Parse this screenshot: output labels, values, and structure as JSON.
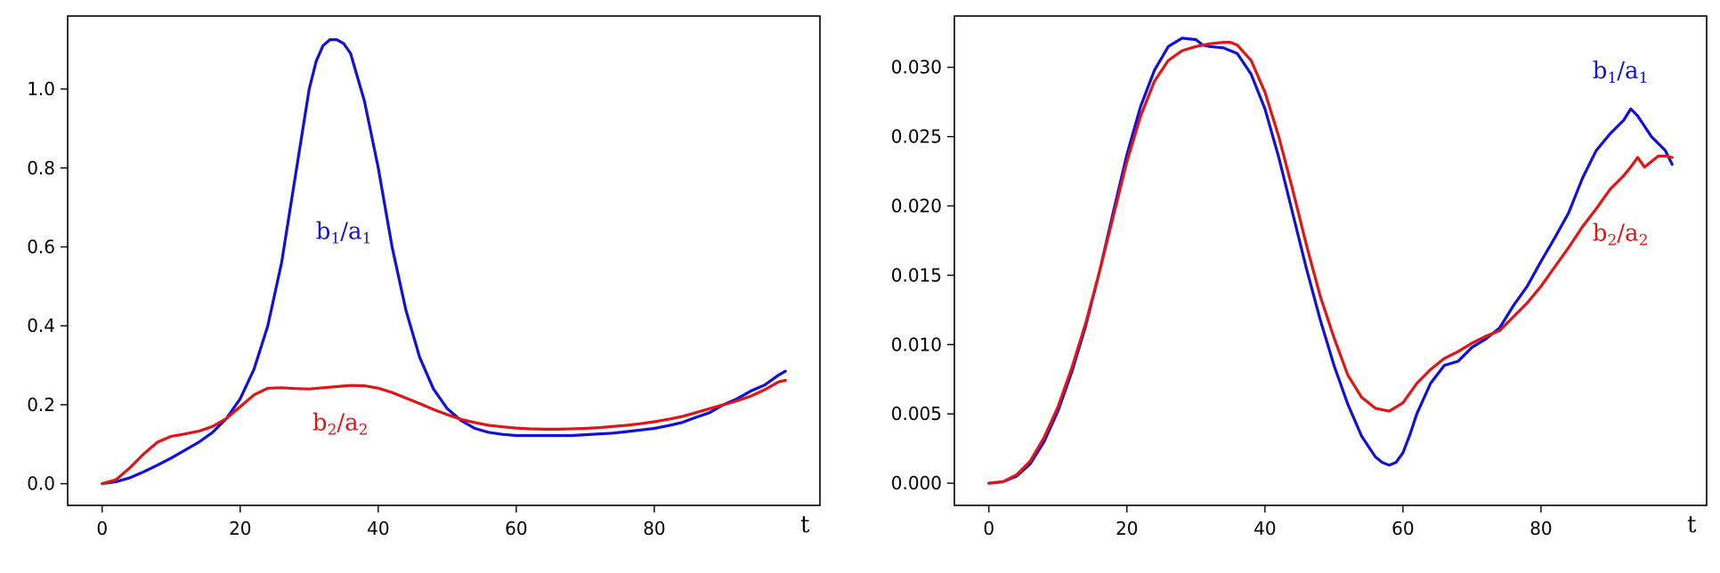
{
  "colors": {
    "b1_over_a1": "#1010dd",
    "b2_over_a2": "#e01515",
    "axes": "#000000"
  },
  "chart_data": [
    {
      "type": "line",
      "xlabel": "t",
      "xlim": [
        -5,
        104
      ],
      "ylim": [
        -0.055,
        1.185
      ],
      "xticks": [
        0,
        20,
        40,
        60,
        80
      ],
      "yticks": [
        0.0,
        0.2,
        0.4,
        0.6,
        0.8,
        1.0
      ],
      "ytick_labels": [
        "0.0",
        "0.2",
        "0.4",
        "0.6",
        "0.8",
        "1.0"
      ],
      "grid": false,
      "series": [
        {
          "name_main": "b",
          "name_sub": "1",
          "name_sep": "/",
          "name_main2": "a",
          "name_sub2": "1",
          "color": "#1010dd",
          "label_anchor": [
            35,
            0.62
          ],
          "x": [
            0,
            2,
            4,
            6,
            8,
            10,
            12,
            14,
            16,
            18,
            20,
            22,
            24,
            26,
            28,
            30,
            31,
            32,
            33,
            34,
            35,
            36,
            38,
            40,
            42,
            44,
            46,
            48,
            50,
            52,
            54,
            56,
            58,
            60,
            62,
            64,
            66,
            68,
            70,
            72,
            74,
            76,
            78,
            80,
            82,
            84,
            86,
            88,
            90,
            92,
            94,
            96,
            98,
            99
          ],
          "y": [
            0.0,
            0.005,
            0.015,
            0.03,
            0.047,
            0.065,
            0.085,
            0.105,
            0.13,
            0.165,
            0.215,
            0.29,
            0.4,
            0.56,
            0.78,
            1.0,
            1.07,
            1.11,
            1.125,
            1.125,
            1.115,
            1.09,
            0.97,
            0.8,
            0.6,
            0.44,
            0.32,
            0.24,
            0.19,
            0.16,
            0.14,
            0.13,
            0.125,
            0.122,
            0.122,
            0.122,
            0.122,
            0.122,
            0.124,
            0.126,
            0.128,
            0.132,
            0.136,
            0.14,
            0.147,
            0.155,
            0.168,
            0.18,
            0.2,
            0.215,
            0.235,
            0.25,
            0.275,
            0.285
          ]
        },
        {
          "name_main": "b",
          "name_sub": "2",
          "name_sep": "/",
          "name_main2": "a",
          "name_sub2": "2",
          "color": "#e01515",
          "label_anchor": [
            34.5,
            0.135
          ],
          "x": [
            0,
            2,
            4,
            6,
            8,
            10,
            12,
            14,
            16,
            18,
            20,
            22,
            24,
            26,
            28,
            30,
            32,
            34,
            36,
            38,
            40,
            42,
            44,
            46,
            48,
            50,
            52,
            54,
            56,
            58,
            60,
            62,
            64,
            66,
            68,
            70,
            72,
            74,
            76,
            78,
            80,
            82,
            84,
            86,
            88,
            90,
            92,
            94,
            96,
            98,
            99
          ],
          "y": [
            0.0,
            0.01,
            0.04,
            0.075,
            0.105,
            0.12,
            0.126,
            0.133,
            0.145,
            0.165,
            0.195,
            0.225,
            0.242,
            0.243,
            0.241,
            0.24,
            0.243,
            0.246,
            0.249,
            0.248,
            0.242,
            0.231,
            0.217,
            0.203,
            0.188,
            0.175,
            0.163,
            0.155,
            0.148,
            0.144,
            0.141,
            0.139,
            0.138,
            0.138,
            0.139,
            0.14,
            0.142,
            0.145,
            0.148,
            0.152,
            0.157,
            0.163,
            0.17,
            0.18,
            0.19,
            0.2,
            0.21,
            0.222,
            0.238,
            0.258,
            0.262
          ]
        }
      ]
    },
    {
      "type": "line",
      "xlabel": "t",
      "xlim": [
        -5,
        104
      ],
      "ylim": [
        -0.0016,
        0.0337
      ],
      "xticks": [
        0,
        20,
        40,
        60,
        80
      ],
      "yticks": [
        0.0,
        0.005,
        0.01,
        0.015,
        0.02,
        0.025,
        0.03
      ],
      "ytick_labels": [
        "0.000",
        "0.005",
        "0.010",
        "0.015",
        "0.020",
        "0.025",
        "0.030"
      ],
      "grid": false,
      "series": [
        {
          "name_main": "b",
          "name_sub": "1",
          "name_sep": "/",
          "name_main2": "a",
          "name_sub2": "1",
          "color": "#1010dd",
          "label_anchor": [
            91.5,
            0.0292
          ],
          "x": [
            0,
            2,
            4,
            6,
            8,
            10,
            12,
            14,
            16,
            18,
            20,
            22,
            24,
            26,
            28,
            30,
            31,
            32,
            34,
            36,
            38,
            40,
            42,
            44,
            46,
            48,
            50,
            52,
            54,
            56,
            57,
            58,
            59,
            60,
            61,
            62,
            64,
            66,
            68,
            70,
            72,
            74,
            76,
            78,
            80,
            82,
            84,
            86,
            88,
            90,
            92,
            93,
            94,
            96,
            98,
            99
          ],
          "y": [
            0.0,
            0.0001,
            0.0005,
            0.0014,
            0.003,
            0.0052,
            0.008,
            0.0113,
            0.0152,
            0.0195,
            0.0237,
            0.0272,
            0.0298,
            0.0315,
            0.0321,
            0.032,
            0.0316,
            0.0315,
            0.0314,
            0.031,
            0.0295,
            0.027,
            0.0235,
            0.0195,
            0.0155,
            0.0118,
            0.0085,
            0.0057,
            0.0034,
            0.0019,
            0.0015,
            0.0013,
            0.0015,
            0.0022,
            0.0035,
            0.005,
            0.0072,
            0.0085,
            0.0088,
            0.0098,
            0.0104,
            0.0112,
            0.0128,
            0.0142,
            0.016,
            0.0177,
            0.0195,
            0.022,
            0.024,
            0.0252,
            0.0262,
            0.027,
            0.0265,
            0.025,
            0.024,
            0.023
          ]
        },
        {
          "name_main": "b",
          "name_sub": "2",
          "name_sep": "/",
          "name_main2": "a",
          "name_sub2": "2",
          "color": "#e01515",
          "label_anchor": [
            91.5,
            0.0175
          ],
          "x": [
            0,
            2,
            4,
            6,
            8,
            10,
            12,
            14,
            16,
            18,
            20,
            22,
            24,
            26,
            28,
            30,
            32,
            34,
            35,
            36,
            38,
            40,
            42,
            44,
            46,
            48,
            50,
            52,
            54,
            56,
            58,
            60,
            62,
            64,
            66,
            68,
            70,
            72,
            74,
            76,
            78,
            80,
            82,
            84,
            86,
            88,
            90,
            92,
            93,
            94,
            95,
            96,
            97,
            98,
            99
          ],
          "y": [
            0.0,
            0.0001,
            0.0006,
            0.0016,
            0.0033,
            0.0055,
            0.0083,
            0.0115,
            0.0152,
            0.0192,
            0.0232,
            0.0265,
            0.029,
            0.0305,
            0.0312,
            0.0315,
            0.0317,
            0.0318,
            0.0318,
            0.0316,
            0.0305,
            0.0282,
            0.025,
            0.0212,
            0.0172,
            0.0135,
            0.0105,
            0.0078,
            0.0062,
            0.0054,
            0.0052,
            0.0058,
            0.0072,
            0.0082,
            0.009,
            0.0095,
            0.0101,
            0.0106,
            0.011,
            0.012,
            0.013,
            0.0142,
            0.0156,
            0.017,
            0.0185,
            0.0198,
            0.0212,
            0.0222,
            0.0228,
            0.0235,
            0.0228,
            0.0232,
            0.0236,
            0.0236,
            0.0235
          ]
        }
      ]
    }
  ]
}
